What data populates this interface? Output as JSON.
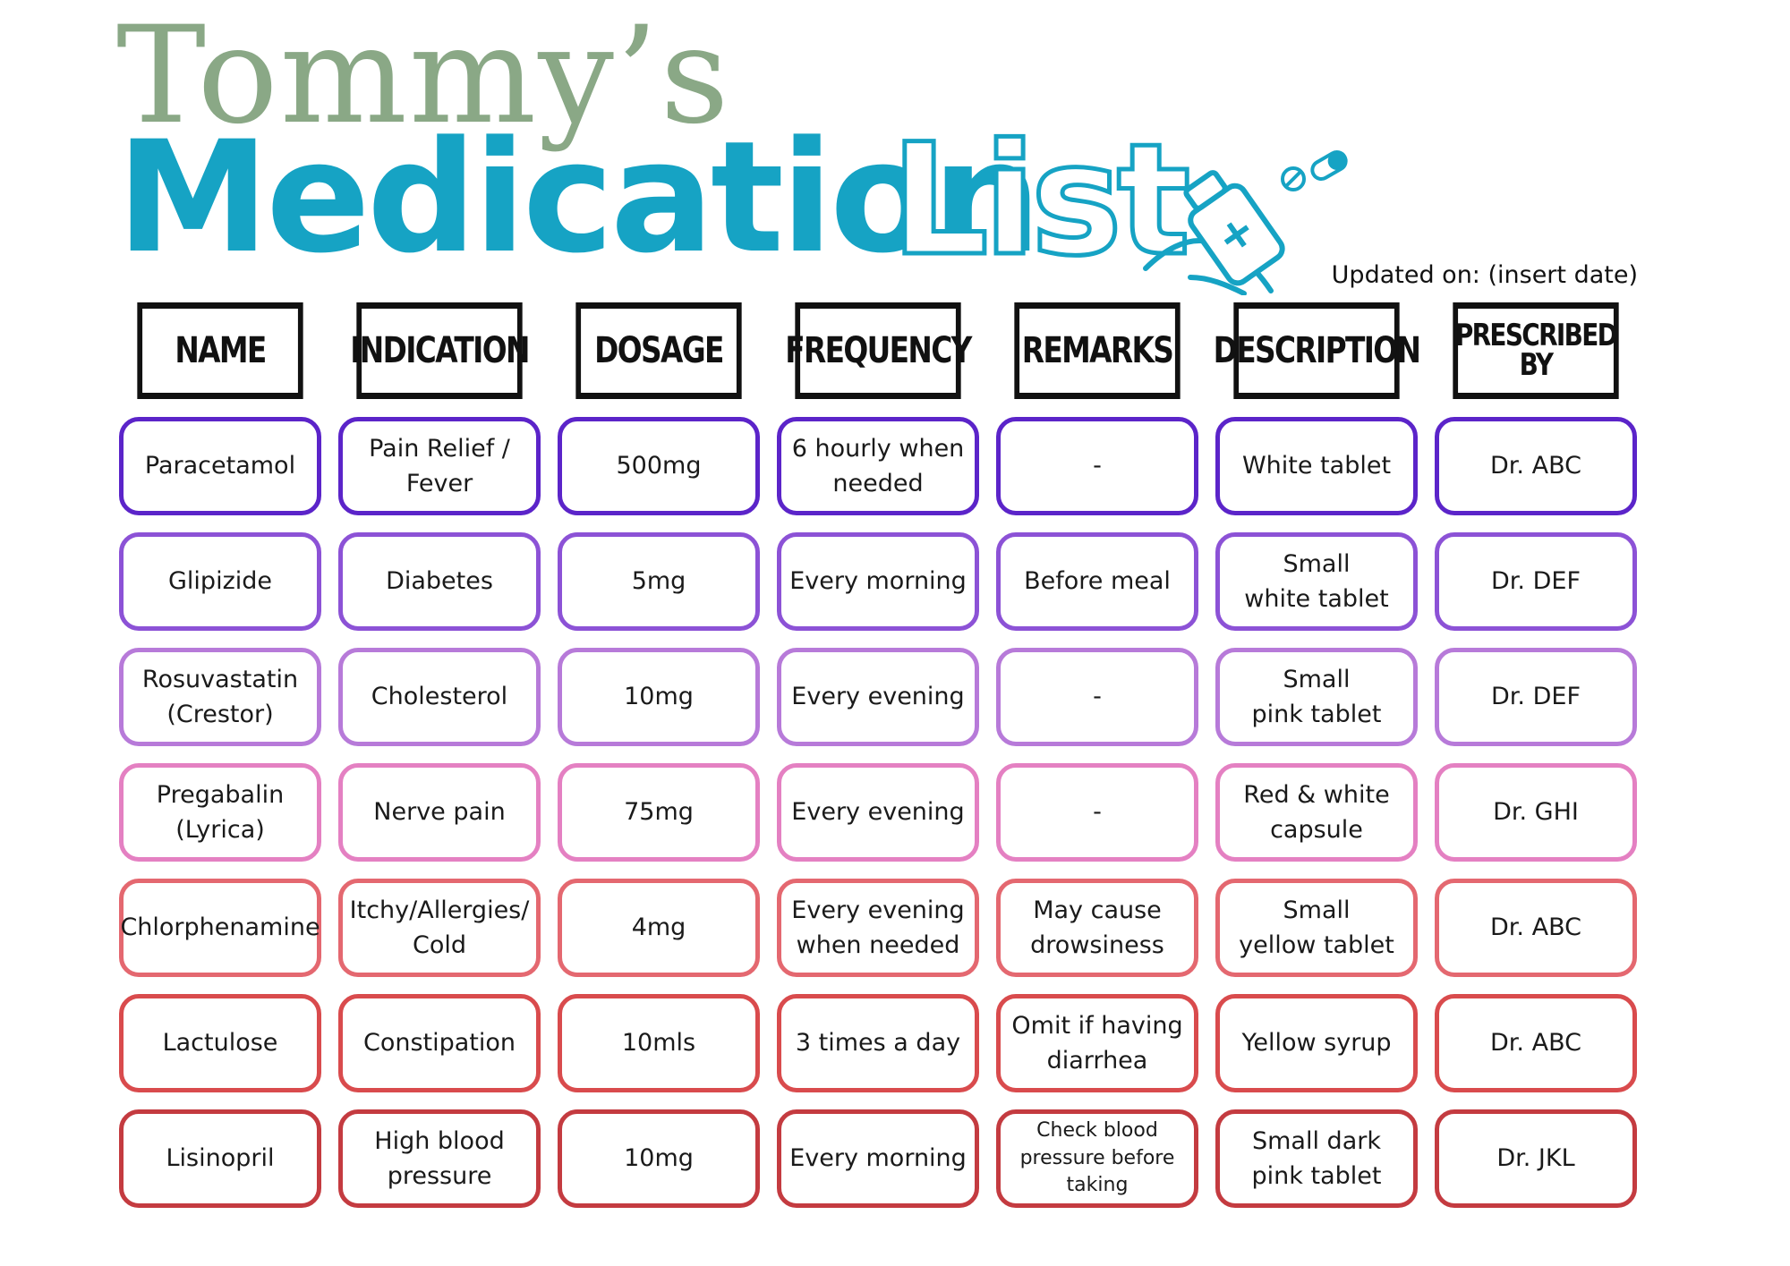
{
  "header": {
    "title_top": "Tommy’s",
    "title_main": "Medication",
    "title_list": "List",
    "updated": "Updated on: (insert date)"
  },
  "columns": [
    "NAME",
    "INDICATION",
    "DOSAGE",
    "FREQUENCY",
    "REMARKS",
    "DESCRIPTION",
    "PRESCRIBED BY"
  ],
  "row_colors": [
    "#5b24c9",
    "#8c52d6",
    "#b77ad9",
    "#e480c2",
    "#e46870",
    "#d94b4d",
    "#c43b40"
  ],
  "rows": [
    [
      "Paracetamol",
      "Pain Relief  /\nFever",
      "500mg",
      "6 hourly when\nneeded",
      "-",
      "White tablet",
      "Dr. ABC"
    ],
    [
      "Glipizide",
      "Diabetes",
      "5mg",
      "Every morning",
      "Before meal",
      "Small\nwhite tablet",
      "Dr. DEF"
    ],
    [
      "Rosuvastatin\n(Crestor)",
      "Cholesterol",
      "10mg",
      "Every evening",
      "-",
      "Small\npink tablet",
      "Dr. DEF"
    ],
    [
      "Pregabalin\n(Lyrica)",
      "Nerve pain",
      "75mg",
      "Every evening",
      "-",
      "Red & white\ncapsule",
      "Dr. GHI"
    ],
    [
      "Chlorphenamine",
      "Itchy/Allergies/\nCold",
      "4mg",
      "Every evening\nwhen needed",
      "May cause\ndrowsiness",
      "Small\nyellow tablet",
      "Dr. ABC"
    ],
    [
      "Lactulose",
      "Constipation",
      "10mls",
      "3 times a day",
      "Omit if having\ndiarrhea",
      "Yellow syrup",
      "Dr. ABC"
    ],
    [
      "Lisinopril",
      "High blood\npressure",
      "10mg",
      "Every morning",
      "Check blood\npressure before\ntaking",
      "Small dark\npink tablet",
      "Dr. JKL"
    ]
  ],
  "icons": {
    "logo": "hand-holding-medicine-bottle-icon"
  }
}
